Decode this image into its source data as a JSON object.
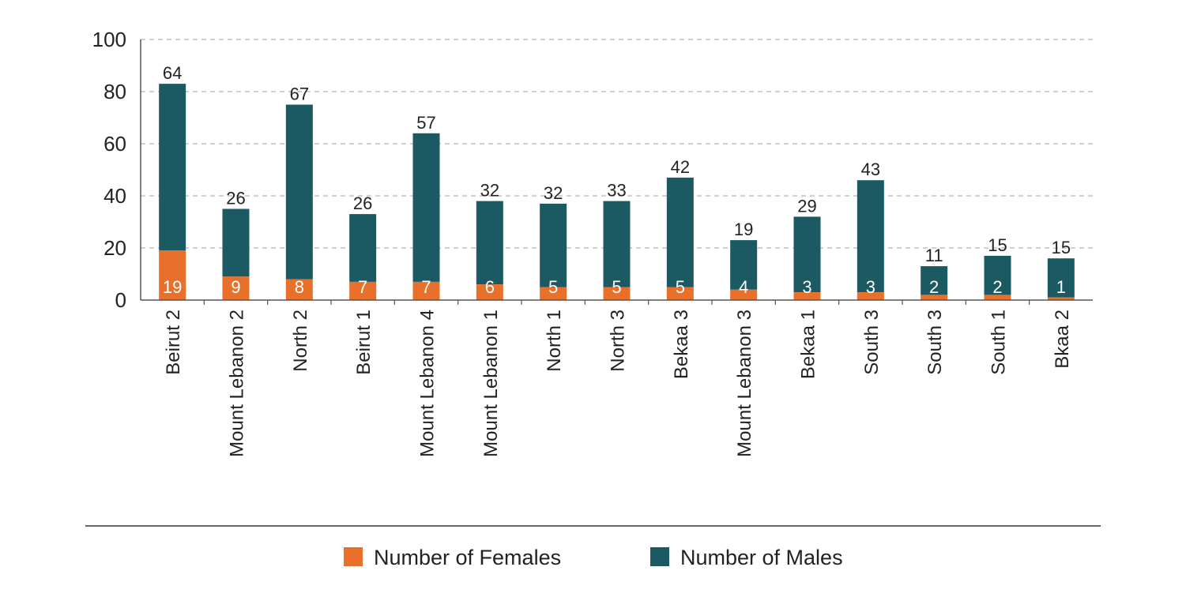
{
  "chart_data": {
    "type": "bar",
    "stacked": true,
    "categories": [
      "Beirut 2",
      "Mount Lebanon 2",
      "North 2",
      "Beirut 1",
      "Mount Lebanon 4",
      "Mount Lebanon 1",
      "North 1",
      "North 3",
      "Bekaa 3",
      "Mount Lebanon 3",
      "Bekaa 1",
      "South 3",
      "South 3",
      "South 1",
      "Bkaa 2"
    ],
    "series": [
      {
        "name": "Number of Females",
        "color": "#E8702A",
        "values": [
          19,
          9,
          8,
          7,
          7,
          6,
          5,
          5,
          5,
          4,
          3,
          3,
          2,
          2,
          1
        ]
      },
      {
        "name": "Number of Males",
        "color": "#1B5A63",
        "values": [
          64,
          26,
          67,
          26,
          57,
          32,
          32,
          33,
          42,
          19,
          29,
          43,
          11,
          15,
          15
        ]
      }
    ],
    "ylim": [
      0,
      100
    ],
    "yticks": [
      "0",
      "20",
      "40",
      "60",
      "80",
      "100"
    ],
    "grid": true,
    "legend_position": "bottom"
  }
}
